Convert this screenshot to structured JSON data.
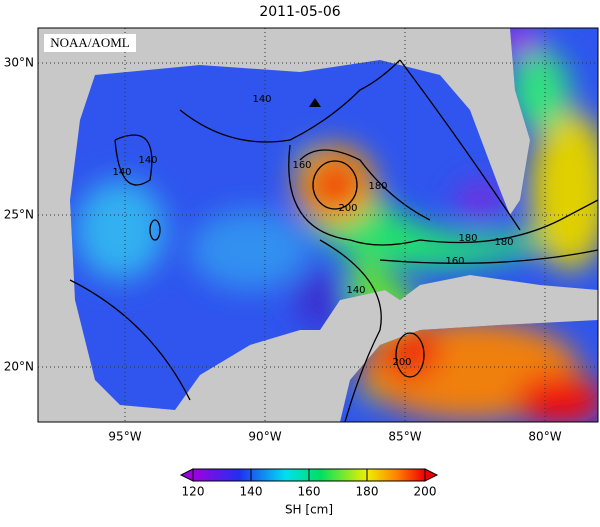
{
  "title": "2011-05-06",
  "credit": "NOAA/AOML",
  "map": {
    "lat_ticks": [
      {
        "value": 30,
        "label": "30°N"
      },
      {
        "value": 25,
        "label": "25°N"
      },
      {
        "value": 20,
        "label": "20°N"
      }
    ],
    "lon_ticks": [
      {
        "value": -95,
        "label": "95°W"
      },
      {
        "value": -90,
        "label": "90°W"
      },
      {
        "value": -85,
        "label": "85°W"
      },
      {
        "value": -80,
        "label": "80°W"
      }
    ],
    "contour_labels": [
      "140",
      "140",
      "140",
      "160",
      "180",
      "200",
      "180",
      "160",
      "140",
      "200",
      "180"
    ]
  },
  "colorbar": {
    "label": "SH [cm]",
    "range": [
      120,
      200
    ],
    "ticks": [
      120,
      140,
      160,
      180,
      200
    ]
  }
}
